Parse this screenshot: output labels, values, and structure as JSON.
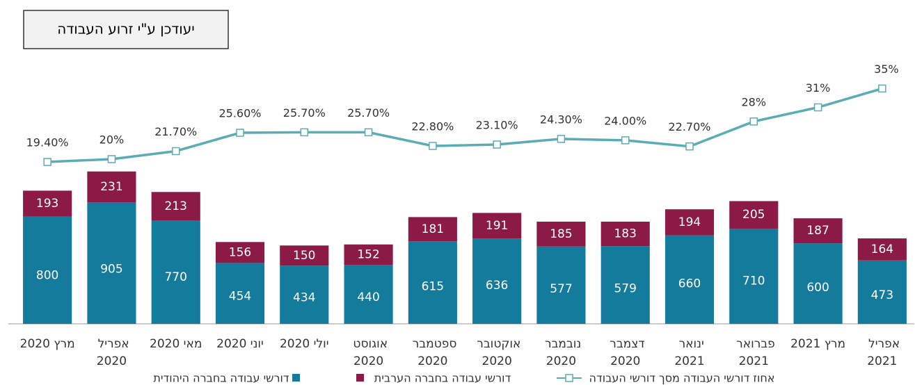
{
  "chart_data": {
    "type": "bar",
    "title": "יעודכן ע\"י זרוע העבודה",
    "categories": [
      "מרץ 2020",
      "אפריל 2020",
      "מאי 2020",
      "יוני 2020",
      "יולי 2020",
      "אוגוסט 2020",
      "ספטמבר 2020",
      "אוקטובר 2020",
      "נובמבר 2020",
      "דצמבר 2020",
      "ינואר 2021",
      "פברואר 2021",
      "מרץ 2021",
      "אפריל 2021"
    ],
    "series": [
      {
        "name": "דורשי עבודה בחברה היהודית",
        "color": "#147b9c",
        "values": [
          800,
          905,
          770,
          454,
          434,
          440,
          615,
          636,
          577,
          579,
          660,
          710,
          600,
          473
        ]
      },
      {
        "name": "דורשי עבודה בחברה הערבית",
        "color": "#8c1a46",
        "values": [
          193,
          231,
          213,
          156,
          150,
          152,
          181,
          191,
          185,
          183,
          194,
          205,
          187,
          164
        ]
      },
      {
        "name": "אחוז דורשי העבודה מסך דורשי העבודה",
        "color": "#5aacb5",
        "type": "line",
        "axis": "y2",
        "values": [
          19.4,
          20,
          21.7,
          25.6,
          25.7,
          25.7,
          22.8,
          23.1,
          24.3,
          24.0,
          22.7,
          28,
          31,
          35
        ],
        "value_labels": [
          "19.40%",
          "20%",
          "21.70%",
          "25.60%",
          "25.70%",
          "25.70%",
          "22.80%",
          "23.10%",
          "24.30%",
          "24.00%",
          "22.70%",
          "28%",
          "31%",
          "35%"
        ]
      }
    ],
    "stacked": true,
    "ylim": [
      0,
      2000
    ],
    "y2lim": [
      -15,
      42
    ]
  }
}
